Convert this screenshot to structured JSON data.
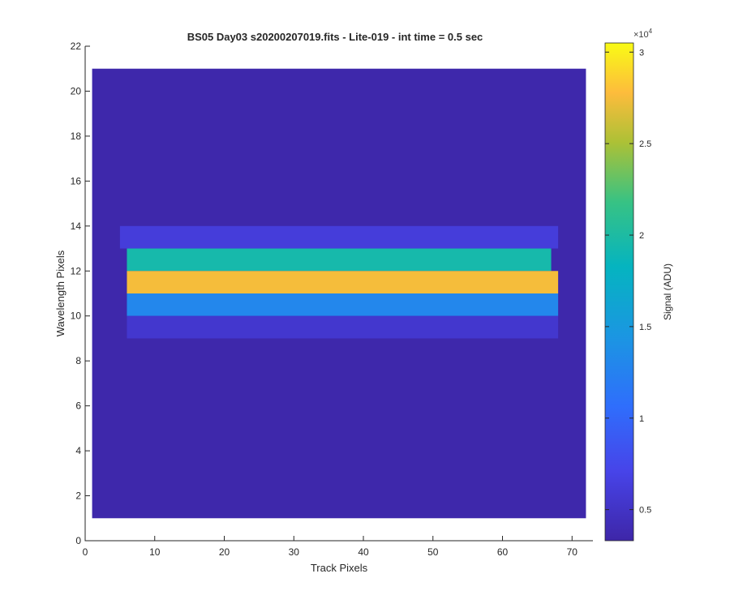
{
  "chart_data": {
    "type": "heatmap",
    "title": "BS05 Day03  s20200207019.fits - Lite-019 - int time = 0.5 sec",
    "xlabel": "Track Pixels",
    "ylabel": "Wavelength Pixels",
    "xlim": [
      0,
      73
    ],
    "ylim": [
      0,
      22
    ],
    "xticks": [
      0,
      10,
      20,
      30,
      40,
      50,
      60,
      70
    ],
    "yticks": [
      0,
      2,
      4,
      6,
      8,
      10,
      12,
      14,
      16,
      18,
      20,
      22
    ],
    "image_extent": {
      "x": [
        1,
        72
      ],
      "y": [
        1,
        21
      ]
    },
    "colormap": "parula",
    "colorbar": {
      "label": "Signal (ADU)",
      "multiplier": "×10",
      "exponent": "4",
      "ticks": [
        0.5,
        1,
        1.5,
        2,
        2.5,
        3
      ],
      "tick_labels": [
        "0.5",
        "1",
        "1.5",
        "2",
        "2.5",
        "3"
      ],
      "clim": [
        0.33,
        3.05
      ]
    },
    "background_value": 0.35,
    "row_values": [
      {
        "y": [
          13,
          14
        ],
        "x": [
          5,
          68
        ],
        "value": 0.62
      },
      {
        "y": [
          12,
          13
        ],
        "x": [
          6,
          67
        ],
        "value": 1.95
      },
      {
        "y": [
          11,
          12
        ],
        "x": [
          6,
          68
        ],
        "value": 2.75
      },
      {
        "y": [
          10,
          11
        ],
        "x": [
          6,
          68
        ],
        "value": 1.3
      },
      {
        "y": [
          9,
          10
        ],
        "x": [
          6,
          68
        ],
        "value": 0.55
      }
    ],
    "grid": false
  }
}
